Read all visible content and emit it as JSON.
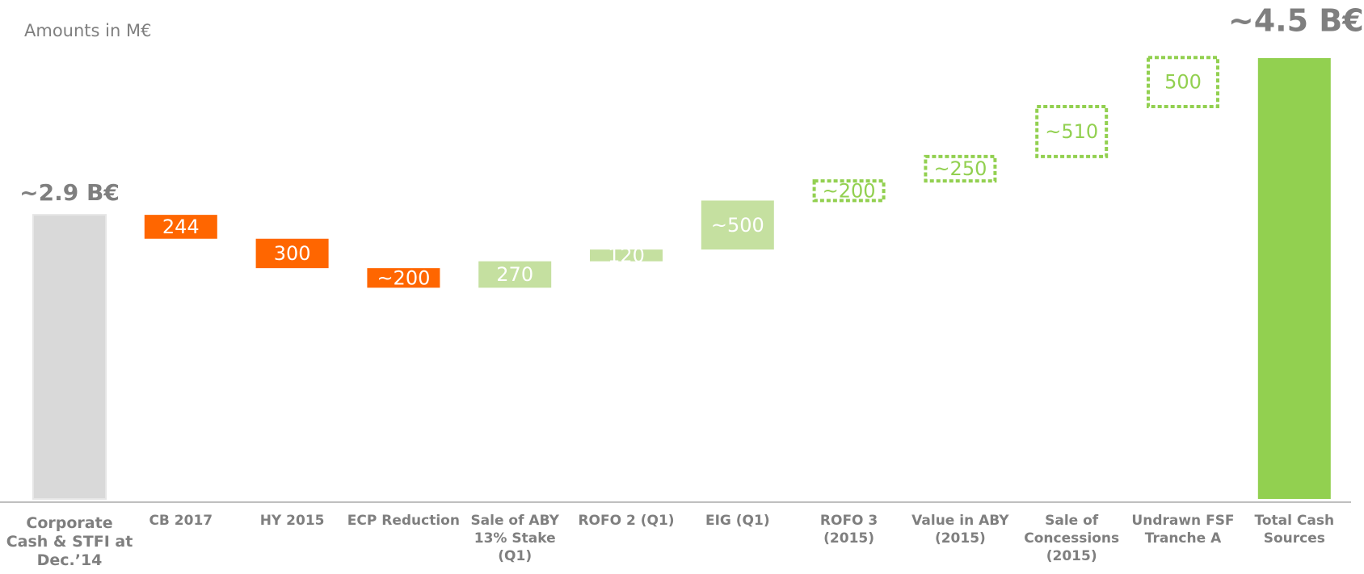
{
  "chart_data": {
    "type": "waterfall",
    "subtitle": "Amounts in M€",
    "categories": [
      "Corporate\nCash & STFI  at\nDec.’14",
      "CB 2017",
      "HY 2015",
      "ECP Reduction",
      "Sale of ABY\n13% Stake (Q1)",
      "ROFO 2 (Q1)",
      "EIG (Q1)",
      "ROFO 3 (2015)",
      "Value in ABY\n(2015)",
      "Sale of\nConcessions\n(2015)",
      "Undrawn FSF\nTranche A",
      "Total Cash\nSources"
    ],
    "values": [
      2900,
      -244,
      -300,
      -200,
      270,
      120,
      500,
      200,
      250,
      510,
      500,
      4500
    ],
    "value_labels": [
      "~2.9 B€",
      "244",
      "300",
      "~200",
      "270",
      "120",
      "~500",
      "~200",
      "~250",
      "~510",
      "500",
      "~4.5 B€"
    ],
    "colors": [
      "#d9d9d9",
      "#ff6600",
      "#ff6600",
      "#ff6600",
      "#c5e0a0",
      "#c5e0a0",
      "#c5e0a0",
      "#ffffff",
      "#ffffff",
      "#ffffff",
      "#ffffff",
      "#92d050"
    ],
    "dashed": [
      false,
      false,
      false,
      false,
      false,
      false,
      false,
      true,
      true,
      true,
      true,
      false
    ],
    "ylim": [
      0,
      4500
    ]
  }
}
